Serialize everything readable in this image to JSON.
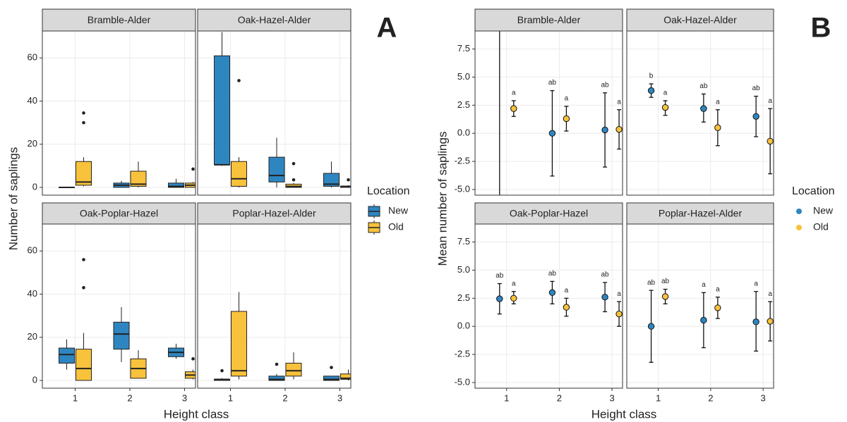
{
  "chart_data": [
    {
      "type": "boxplot",
      "label": "A",
      "ylabel": "Number of saplings",
      "xlabel": "Height class",
      "legend_title": "Location",
      "series": [
        {
          "name": "New",
          "color": "#2e86c1"
        },
        {
          "name": "Old",
          "color": "#f9c23c"
        }
      ],
      "categories": [
        "1",
        "2",
        "3"
      ],
      "ylim": [
        -3.6,
        72.5
      ],
      "yticks": [
        0,
        20,
        40,
        60
      ],
      "grid": true,
      "facets": [
        {
          "title": "Bramble-Alder",
          "boxes": [
            [
              {
                "min": 0,
                "q1": 0,
                "median": 0,
                "q3": 0,
                "max": 0,
                "outliers": []
              },
              {
                "min": 0,
                "q1": 0,
                "median": 1,
                "q3": 2,
                "max": 3,
                "outliers": []
              },
              {
                "min": 0,
                "q1": 0,
                "median": 0.5,
                "q3": 2,
                "max": 4,
                "outliers": []
              }
            ],
            [
              {
                "min": 0.5,
                "q1": 1,
                "median": 2.5,
                "q3": 12,
                "max": 14,
                "outliers": [
                  30,
                  34.5
                ]
              },
              {
                "min": 0,
                "q1": 0.5,
                "median": 1.5,
                "q3": 7.5,
                "max": 12,
                "outliers": []
              },
              {
                "min": 0,
                "q1": 0,
                "median": 1,
                "q3": 2,
                "max": 2.5,
                "outliers": [
                  8.5
                ]
              }
            ]
          ]
        },
        {
          "title": "Oak-Hazel-Alder",
          "boxes": [
            [
              {
                "min": 10,
                "q1": 10.5,
                "median": 10.5,
                "q3": 61,
                "max": 72,
                "outliers": []
              },
              {
                "min": 0,
                "q1": 2.5,
                "median": 5.5,
                "q3": 14,
                "max": 23,
                "outliers": []
              },
              {
                "min": 0,
                "q1": 0.5,
                "median": 1.5,
                "q3": 6.5,
                "max": 12,
                "outliers": []
              }
            ],
            [
              {
                "min": 0,
                "q1": 0.5,
                "median": 4,
                "q3": 12,
                "max": 14,
                "outliers": [
                  49.5
                ]
              },
              {
                "min": 0,
                "q1": 0,
                "median": 0.5,
                "q3": 1.5,
                "max": 2,
                "outliers": [
                  3.5,
                  11
                ]
              },
              {
                "min": 0,
                "q1": 0,
                "median": 0.5,
                "q3": 0.5,
                "max": 1,
                "outliers": [
                  3.5
                ]
              }
            ]
          ]
        },
        {
          "title": "Oak-Poplar-Hazel",
          "boxes": [
            [
              {
                "min": 5,
                "q1": 8,
                "median": 12,
                "q3": 15,
                "max": 19,
                "outliers": []
              },
              {
                "min": 8.5,
                "q1": 14.5,
                "median": 21.5,
                "q3": 27,
                "max": 34,
                "outliers": []
              },
              {
                "min": 10,
                "q1": 11,
                "median": 13,
                "q3": 15,
                "max": 17,
                "outliers": []
              }
            ],
            [
              {
                "min": 0,
                "q1": 0,
                "median": 5.5,
                "q3": 14.5,
                "max": 22,
                "outliers": [
                  43,
                  56
                ]
              },
              {
                "min": 1,
                "q1": 1,
                "median": 5.5,
                "q3": 10,
                "max": 14,
                "outliers": []
              },
              {
                "min": 0.5,
                "q1": 1,
                "median": 2.5,
                "q3": 4,
                "max": 5,
                "outliers": [
                  10
                ]
              }
            ]
          ]
        },
        {
          "title": "Poplar-Hazel-Alder",
          "boxes": [
            [
              {
                "min": 0,
                "q1": 0,
                "median": 0.5,
                "q3": 0.5,
                "max": 1,
                "outliers": [
                  4.5
                ]
              },
              {
                "min": 0,
                "q1": 0,
                "median": 0.5,
                "q3": 2,
                "max": 3,
                "outliers": [
                  7.5
                ]
              },
              {
                "min": 0,
                "q1": 0,
                "median": 0.5,
                "q3": 2,
                "max": 2,
                "outliers": [
                  6
                ]
              }
            ],
            [
              {
                "min": 0.5,
                "q1": 2,
                "median": 4.5,
                "q3": 32,
                "max": 41,
                "outliers": []
              },
              {
                "min": 0.5,
                "q1": 2,
                "median": 4.5,
                "q3": 8,
                "max": 13,
                "outliers": []
              },
              {
                "min": 0,
                "q1": 0.5,
                "median": 1,
                "q3": 3,
                "max": 5,
                "outliers": []
              }
            ]
          ]
        }
      ]
    },
    {
      "type": "pointrange",
      "label": "B",
      "ylabel": "Mean number of saplings",
      "xlabel": "Height class",
      "legend_title": "Location",
      "series": [
        {
          "name": "New",
          "color": "#2e86c1"
        },
        {
          "name": "Old",
          "color": "#f9c23c"
        }
      ],
      "categories": [
        "1",
        "2",
        "3"
      ],
      "ylim": [
        -5.5,
        9.1
      ],
      "yticks": [
        {
          "value": -5,
          "label": "-5.0"
        },
        -2.5,
        {
          "value": 0,
          "label": "0.0"
        },
        2.5,
        {
          "value": 5,
          "label": "5.0"
        },
        7.5
      ],
      "grid": true,
      "facets": [
        {
          "title": "Bramble-Alder",
          "points": [
            [
              {
                "mean": null,
                "lower": -6,
                "upper": 10
              },
              {
                "mean": 0,
                "lower": -3.8,
                "upper": 3.8,
                "label": "ab"
              },
              {
                "mean": 0.3,
                "lower": -3.0,
                "upper": 3.6,
                "label": "ab"
              }
            ],
            [
              {
                "mean": 2.2,
                "lower": 1.5,
                "upper": 2.9,
                "label": "a"
              },
              {
                "mean": 1.3,
                "lower": 0.2,
                "upper": 2.4,
                "label": "a"
              },
              {
                "mean": 0.35,
                "lower": -1.4,
                "upper": 2.1,
                "label": "a"
              }
            ]
          ]
        },
        {
          "title": "Oak-Hazel-Alder",
          "points": [
            [
              {
                "mean": 3.8,
                "lower": 3.2,
                "upper": 4.4,
                "label": "b"
              },
              {
                "mean": 2.2,
                "lower": 1.0,
                "upper": 3.5,
                "label": "ab"
              },
              {
                "mean": 1.5,
                "lower": -0.3,
                "upper": 3.3,
                "label": "ab"
              }
            ],
            [
              {
                "mean": 2.3,
                "lower": 1.6,
                "upper": 2.9,
                "label": "a"
              },
              {
                "mean": 0.5,
                "lower": -1.1,
                "upper": 2.1,
                "label": "a"
              },
              {
                "mean": -0.7,
                "lower": -3.6,
                "upper": 2.2,
                "label": "a"
              }
            ]
          ]
        },
        {
          "title": "Oak-Poplar-Hazel",
          "points": [
            [
              {
                "mean": 2.45,
                "lower": 1.1,
                "upper": 3.8,
                "label": "ab"
              },
              {
                "mean": 3.0,
                "lower": 2.0,
                "upper": 4.0,
                "label": "ab"
              },
              {
                "mean": 2.6,
                "lower": 1.3,
                "upper": 3.9,
                "label": "ab"
              }
            ],
            [
              {
                "mean": 2.5,
                "lower": 2.0,
                "upper": 3.1,
                "label": "a"
              },
              {
                "mean": 1.7,
                "lower": 0.9,
                "upper": 2.5,
                "label": "a"
              },
              {
                "mean": 1.1,
                "lower": 0,
                "upper": 2.2,
                "label": "a"
              }
            ]
          ]
        },
        {
          "title": "Poplar-Hazel-Alder",
          "points": [
            [
              {
                "mean": 0,
                "lower": -3.2,
                "upper": 3.2,
                "label": "ab"
              },
              {
                "mean": 0.55,
                "lower": -1.9,
                "upper": 3.0,
                "label": "a"
              },
              {
                "mean": 0.4,
                "lower": -2.2,
                "upper": 3.1,
                "label": "a"
              }
            ],
            [
              {
                "mean": 2.65,
                "lower": 2.0,
                "upper": 3.3,
                "label": "ab"
              },
              {
                "mean": 1.65,
                "lower": 0.7,
                "upper": 2.6,
                "label": "a"
              },
              {
                "mean": 0.45,
                "lower": -1.3,
                "upper": 2.2,
                "label": "a"
              }
            ]
          ]
        }
      ]
    }
  ]
}
